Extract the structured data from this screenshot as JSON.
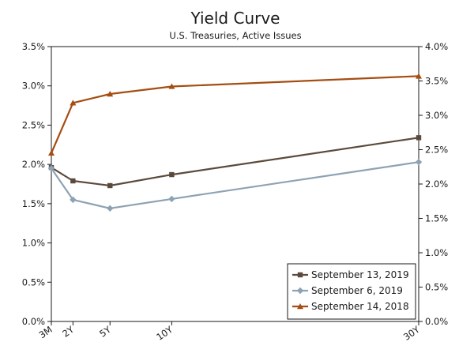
{
  "chart_data": {
    "type": "line",
    "title": "Yield Curve",
    "subtitle": "U.S. Treasuries, Active Issues",
    "categories": [
      "3M",
      "2Y",
      "5Y",
      "10Y",
      "30Y"
    ],
    "x_years": [
      0.25,
      2,
      5,
      10,
      30
    ],
    "y_left": {
      "ticks": [
        "0.0%",
        "0.5%",
        "1.0%",
        "1.5%",
        "2.0%",
        "2.5%",
        "3.0%",
        "3.5%"
      ],
      "range": [
        0,
        3.5
      ],
      "step": 0.5
    },
    "y_right": {
      "ticks": [
        "0.0%",
        "0.5%",
        "1.0%",
        "1.5%",
        "2.0%",
        "2.5%",
        "3.0%",
        "3.5%",
        "4.0%"
      ],
      "range": [
        0,
        4.0
      ],
      "step": 0.5
    },
    "series": [
      {
        "name": "September 13, 2019",
        "axis": "left",
        "color": "#5b4a3c",
        "marker": "square",
        "values": [
          1.96,
          1.79,
          1.73,
          1.87,
          2.34
        ]
      },
      {
        "name": "September 6, 2019",
        "axis": "left",
        "color": "#8da3b3",
        "marker": "diamond",
        "values": [
          1.95,
          1.55,
          1.44,
          1.56,
          2.03
        ]
      },
      {
        "name": "September 14, 2018",
        "axis": "right",
        "color": "#a54d12",
        "marker": "triangle",
        "values": [
          2.45,
          3.18,
          3.31,
          3.42,
          3.57
        ]
      }
    ],
    "legend": {
      "position": "bottom-right",
      "order": [
        0,
        1,
        2
      ]
    },
    "grid": false
  }
}
